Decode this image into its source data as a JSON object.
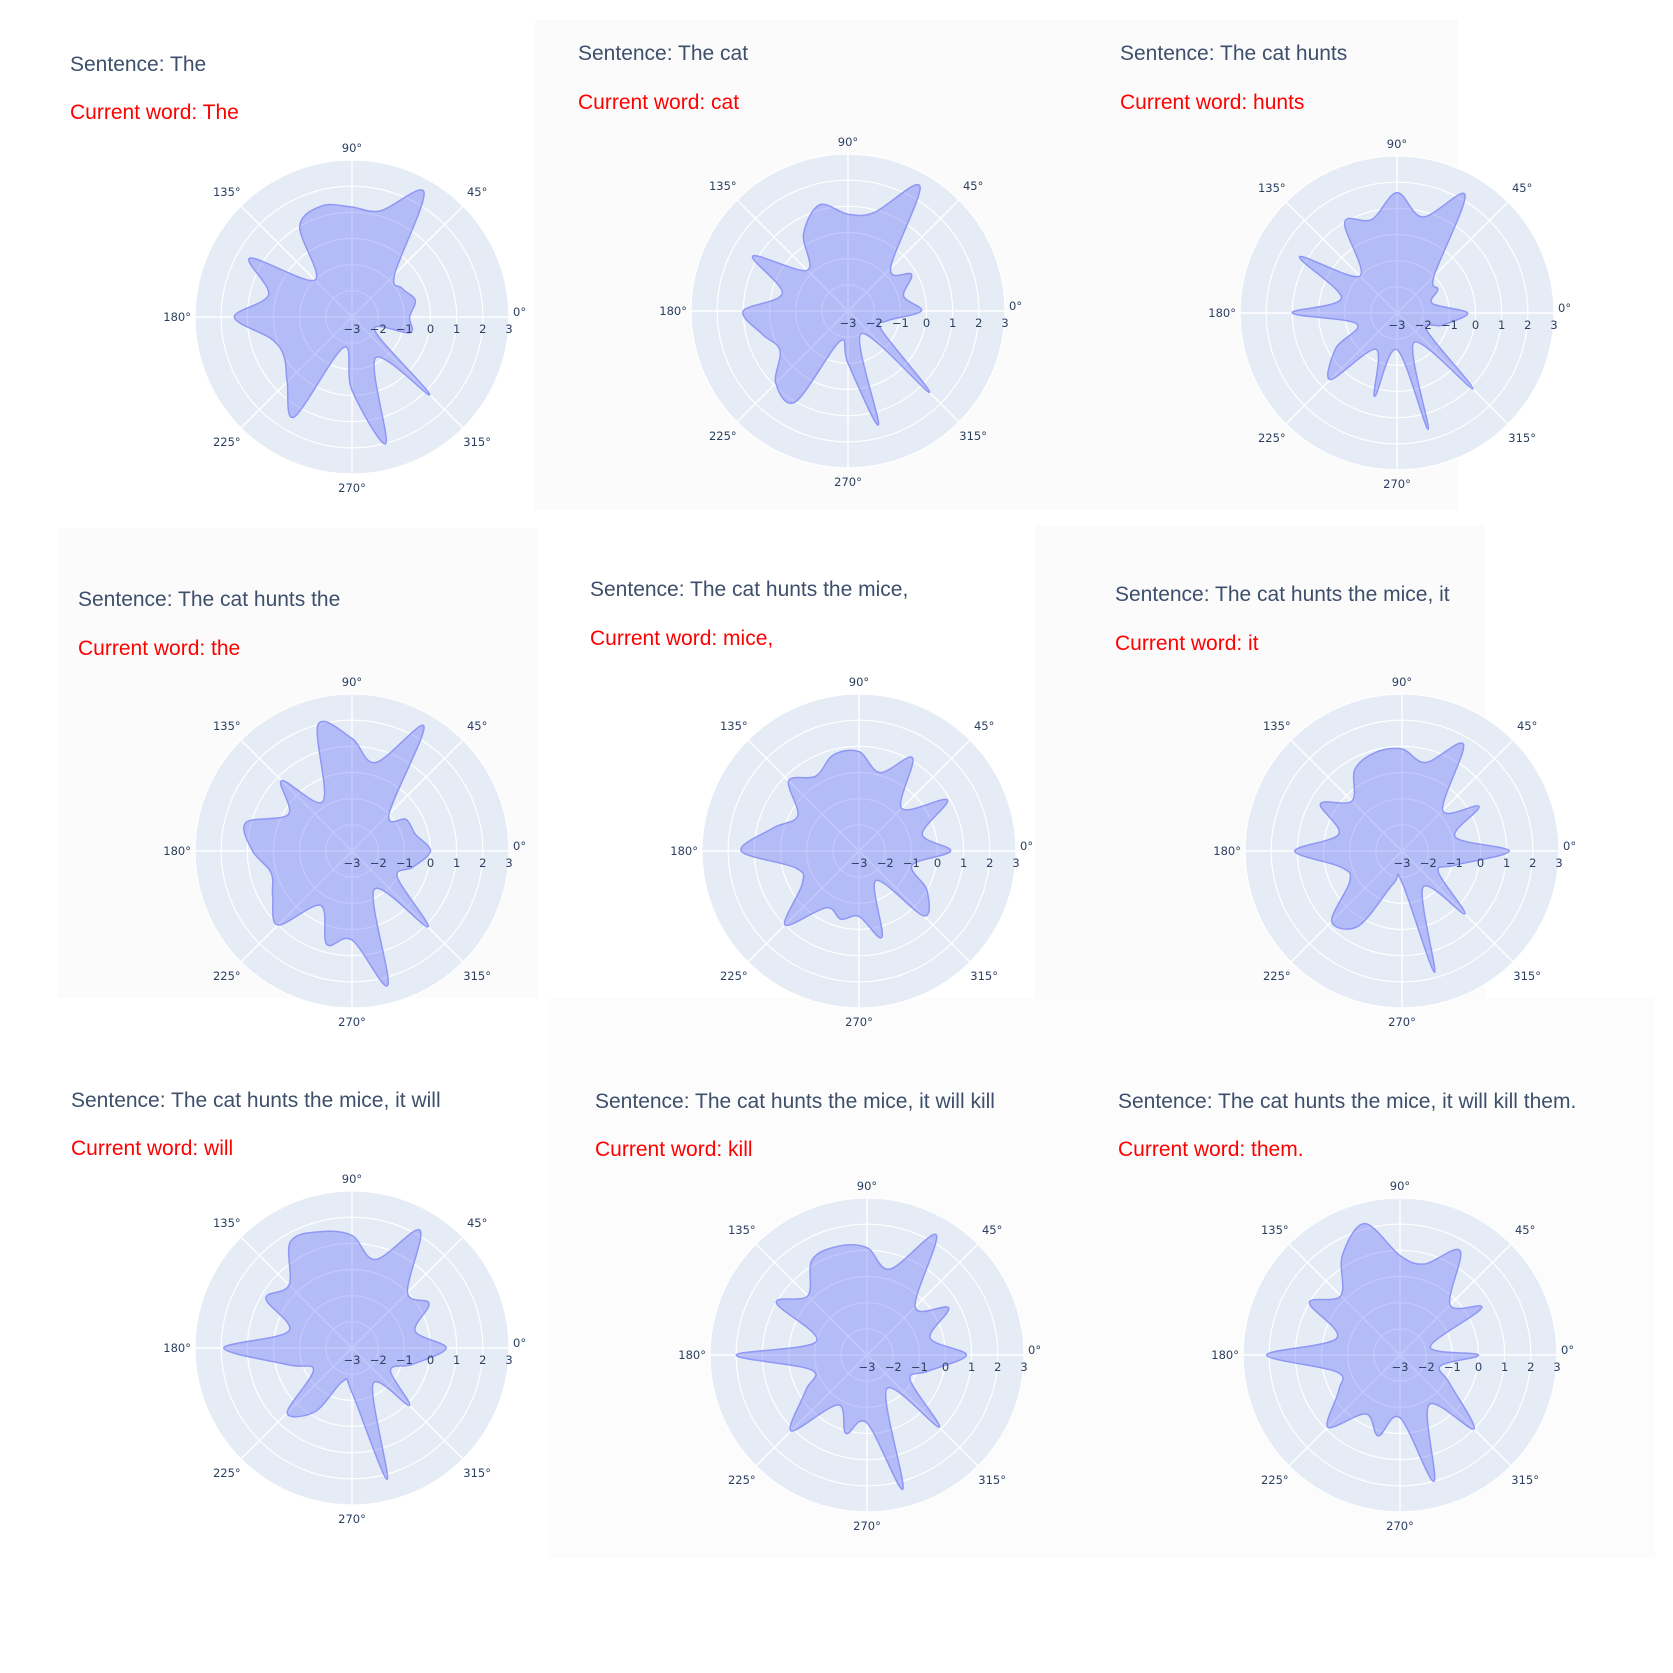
{
  "chart_data": [
    {
      "type": "area",
      "title": "Sentence: The",
      "subtitle": "Current word: The",
      "angular_ticks": [
        "0°",
        "45°",
        "90°",
        "135°",
        "180°",
        "225°",
        "270°",
        "315°"
      ],
      "radial_ticks": [
        "−3",
        "−2",
        "−1",
        "0",
        "1",
        "2",
        "3"
      ],
      "rlim": [
        -3,
        3
      ],
      "theta_deg": [
        0,
        15,
        30,
        45,
        60,
        75,
        90,
        105,
        120,
        135,
        150,
        165,
        180,
        195,
        210,
        225,
        240,
        255,
        270,
        285,
        300,
        315,
        330,
        345
      ],
      "r": [
        -0.8,
        -0.5,
        -0.8,
        -0.7,
        2.5,
        1.2,
        1.2,
        1.4,
        1.0,
        -1.0,
        1.5,
        0.3,
        1.5,
        0.2,
        0.0,
        0.5,
        1.4,
        -1.8,
        -0.2,
        2.0,
        -1.2,
        1.2,
        -2.0,
        -0.7
      ]
    },
    {
      "type": "area",
      "title": "Sentence: The cat",
      "subtitle": "Current word: cat",
      "angular_ticks": [
        "0°",
        "45°",
        "90°",
        "135°",
        "180°",
        "225°",
        "270°",
        "315°"
      ],
      "radial_ticks": [
        "−3",
        "−2",
        "−1",
        "0",
        "1",
        "2",
        "3"
      ],
      "rlim": [
        -3,
        3
      ],
      "theta_deg": [
        0,
        15,
        30,
        45,
        60,
        75,
        90,
        105,
        120,
        135,
        150,
        165,
        180,
        195,
        210,
        225,
        240,
        255,
        270,
        285,
        300,
        315,
        330,
        345
      ],
      "r": [
        -0.2,
        -0.8,
        -0.2,
        -0.7,
        2.5,
        0.9,
        0.7,
        1.2,
        0.4,
        -0.8,
        1.2,
        -0.4,
        1.0,
        0.4,
        0.0,
        0.9,
        1.0,
        -1.8,
        -1.0,
        1.5,
        -2.0,
        1.4,
        -1.5,
        -1.5
      ]
    },
    {
      "type": "area",
      "title": "Sentence: The cat hunts",
      "subtitle": "Current word: hunts",
      "angular_ticks": [
        "0°",
        "45°",
        "90°",
        "135°",
        "180°",
        "225°",
        "270°",
        "315°"
      ],
      "radial_ticks": [
        "−3",
        "−2",
        "−1",
        "0",
        "1",
        "2",
        "3"
      ],
      "rlim": [
        -3,
        3
      ],
      "theta_deg": [
        0,
        15,
        30,
        45,
        60,
        75,
        90,
        105,
        120,
        135,
        150,
        165,
        180,
        195,
        210,
        225,
        240,
        255,
        270,
        285,
        300,
        315,
        330,
        345
      ],
      "r": [
        -0.3,
        -1.6,
        -1.2,
        -1.0,
        2.2,
        0.8,
        1.6,
        0.7,
        1.0,
        -1.0,
        1.3,
        -0.8,
        1.0,
        -1.4,
        -0.3,
        0.6,
        -1.4,
        0.3,
        -1.6,
        1.6,
        -1.7,
        1.1,
        -1.7,
        -1.2
      ]
    },
    {
      "type": "area",
      "title": "Sentence: The cat hunts the",
      "subtitle": "Current word: the",
      "angular_ticks": [
        "0°",
        "45°",
        "90°",
        "135°",
        "180°",
        "225°",
        "270°",
        "315°"
      ],
      "radial_ticks": [
        "−3",
        "−2",
        "−1",
        "0",
        "1",
        "2",
        "3"
      ],
      "rlim": [
        -3,
        3
      ],
      "theta_deg": [
        0,
        15,
        30,
        45,
        60,
        75,
        90,
        105,
        120,
        135,
        150,
        165,
        180,
        195,
        210,
        225,
        240,
        255,
        270,
        285,
        300,
        315,
        330,
        345
      ],
      "r": [
        0.0,
        -0.5,
        -0.6,
        -1.0,
        2.5,
        0.5,
        1.3,
        2.0,
        -0.8,
        0.8,
        -0.2,
        1.2,
        0.8,
        0.2,
        0.5,
        1.0,
        -0.6,
        0.7,
        0.4,
        2.3,
        -1.3,
        1.1,
        -1.0,
        -0.6
      ]
    },
    {
      "type": "area",
      "title": "Sentence: The cat hunts the mice,",
      "subtitle": "Current word: mice,",
      "angular_ticks": [
        "0°",
        "45°",
        "90°",
        "135°",
        "180°",
        "225°",
        "270°",
        "315°"
      ],
      "radial_ticks": [
        "−3",
        "−2",
        "−1",
        "0",
        "1",
        "2",
        "3"
      ],
      "rlim": [
        -3,
        3
      ],
      "theta_deg": [
        0,
        15,
        30,
        45,
        60,
        75,
        90,
        105,
        120,
        135,
        150,
        165,
        180,
        195,
        210,
        225,
        240,
        255,
        270,
        285,
        300,
        315,
        330,
        345
      ],
      "r": [
        0.5,
        -0.5,
        0.9,
        -0.7,
        1.1,
        0.1,
        0.8,
        0.8,
        0.3,
        0.8,
        -0.3,
        0.4,
        1.5,
        -0.5,
        -0.5,
        1.0,
        -0.5,
        -0.3,
        -0.5,
        0.4,
        -1.7,
        0.5,
        0.0,
        -0.9
      ]
    },
    {
      "type": "area",
      "title": "Sentence: The cat hunts the mice, it",
      "subtitle": "Current word: it",
      "angular_ticks": [
        "0°",
        "45°",
        "90°",
        "135°",
        "180°",
        "225°",
        "270°",
        "315°"
      ],
      "radial_ticks": [
        "−3",
        "−2",
        "−1",
        "0",
        "1",
        "2",
        "3"
      ],
      "rlim": [
        -3,
        3
      ],
      "theta_deg": [
        0,
        15,
        30,
        45,
        60,
        75,
        90,
        105,
        120,
        135,
        150,
        165,
        180,
        195,
        210,
        225,
        240,
        255,
        270,
        285,
        300,
        315,
        330,
        345
      ],
      "r": [
        1.1,
        -0.9,
        0.4,
        -0.8,
        1.7,
        0.5,
        0.9,
        0.9,
        0.6,
        -0.3,
        0.6,
        -0.5,
        1.1,
        -0.6,
        -0.7,
        0.8,
        0.3,
        -1.7,
        -1.8,
        1.8,
        -1.4,
        0.4,
        -1.4,
        -0.9
      ]
    },
    {
      "type": "area",
      "title": "Sentence: The cat hunts the mice, it will",
      "subtitle": "Current word: will",
      "angular_ticks": [
        "0°",
        "45°",
        "90°",
        "135°",
        "180°",
        "225°",
        "270°",
        "315°"
      ],
      "radial_ticks": [
        "−3",
        "−2",
        "−1",
        "0",
        "1",
        "2",
        "3"
      ],
      "rlim": [
        -3,
        3
      ],
      "theta_deg": [
        0,
        15,
        30,
        45,
        60,
        75,
        90,
        105,
        120,
        135,
        150,
        165,
        180,
        195,
        210,
        225,
        240,
        255,
        270,
        285,
        300,
        315,
        330,
        345
      ],
      "r": [
        0.6,
        -0.5,
        0.4,
        0.0,
        2.2,
        0.5,
        1.3,
        1.6,
        1.7,
        0.4,
        0.8,
        -0.5,
        1.9,
        -0.5,
        -1.3,
        0.5,
        -0.2,
        -1.7,
        -1.3,
        2.2,
        -1.4,
        0.1,
        -1.3,
        -0.6
      ]
    },
    {
      "type": "area",
      "title": "Sentence: The cat hunts the mice, it will kill",
      "subtitle": "Current word: kill",
      "angular_ticks": [
        "0°",
        "45°",
        "90°",
        "135°",
        "180°",
        "225°",
        "270°",
        "315°"
      ],
      "radial_ticks": [
        "−3",
        "−2",
        "−1",
        "0",
        "1",
        "2",
        "3"
      ],
      "rlim": [
        -3,
        3
      ],
      "theta_deg": [
        0,
        15,
        30,
        45,
        60,
        75,
        90,
        105,
        120,
        135,
        150,
        165,
        180,
        195,
        210,
        225,
        240,
        255,
        270,
        285,
        300,
        315,
        330,
        345
      ],
      "r": [
        0.8,
        -0.5,
        0.6,
        -0.4,
        2.3,
        0.4,
        1.1,
        1.3,
        1.2,
        0.2,
        1.0,
        -1.0,
        2.0,
        -0.8,
        -0.3,
        1.1,
        -0.8,
        0.1,
        -0.4,
        2.3,
        -1.5,
        0.9,
        -1.1,
        -0.6
      ]
    },
    {
      "type": "area",
      "title": "Sentence: The cat hunts the mice, it will kill them.",
      "subtitle": "Current word: them.",
      "angular_ticks": [
        "0°",
        "45°",
        "90°",
        "135°",
        "180°",
        "225°",
        "270°",
        "315°"
      ],
      "radial_ticks": [
        "−3",
        "−2",
        "−1",
        "0",
        "1",
        "2",
        "3"
      ],
      "rlim": [
        -3,
        3
      ],
      "theta_deg": [
        0,
        15,
        30,
        45,
        60,
        75,
        90,
        105,
        120,
        135,
        150,
        165,
        180,
        195,
        210,
        225,
        240,
        255,
        270,
        285,
        300,
        315,
        330,
        345
      ],
      "r": [
        0.0,
        -1.8,
        0.6,
        -0.3,
        1.6,
        0.6,
        0.8,
        2.2,
        1.4,
        0.2,
        1.0,
        -0.5,
        2.1,
        -0.5,
        -0.3,
        0.9,
        -0.4,
        0.2,
        -0.6,
        2.0,
        -0.8,
        1.0,
        -0.8,
        -1.4
      ]
    }
  ]
}
